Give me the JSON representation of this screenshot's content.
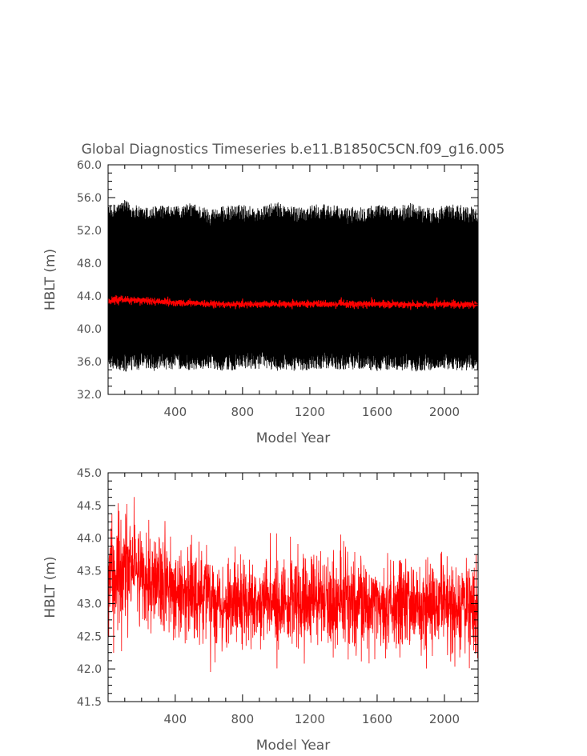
{
  "title": "Global Diagnostics Timeseries b.e11.B1850C5CN.f09_g16.005",
  "chart_data": [
    {
      "type": "line",
      "xlabel": "Model Year",
      "ylabel": "HBLT (m)",
      "xlim": [
        1,
        2200
      ],
      "ylim": [
        32.0,
        60.0
      ],
      "x_ticks": [
        400,
        800,
        1200,
        1600,
        2000
      ],
      "x_tick_labels": [
        "400",
        "800",
        "1200",
        "1600",
        "2000"
      ],
      "y_ticks": [
        32,
        36,
        40,
        44,
        48,
        52,
        56,
        60
      ],
      "y_tick_labels": [
        "32.0",
        "36.0",
        "40.0",
        "44.0",
        "48.0",
        "52.0",
        "56.0",
        "60.0"
      ],
      "series": [
        {
          "kind": "monthly",
          "color": "#000000",
          "x": [
            1,
            100,
            200,
            300,
            400,
            500,
            600,
            700,
            800,
            900,
            1000,
            1100,
            1200,
            1300,
            1400,
            1500,
            1600,
            1700,
            1800,
            1900,
            2000,
            2100,
            2200
          ],
          "min": [
            35.5,
            34.8,
            35.2,
            35.0,
            35.3,
            35.1,
            35.4,
            35.0,
            35.2,
            35.3,
            35.1,
            35.0,
            35.2,
            35.4,
            35.1,
            35.3,
            35.0,
            35.2,
            34.9,
            35.1,
            35.3,
            35.0,
            35.2
          ],
          "max": [
            54.8,
            55.5,
            54.6,
            54.9,
            54.7,
            55.2,
            54.5,
            54.8,
            55.0,
            54.6,
            55.3,
            54.7,
            54.9,
            55.1,
            54.6,
            54.8,
            55.0,
            54.7,
            55.2,
            54.6,
            54.9,
            55.0,
            54.5
          ]
        },
        {
          "kind": "annual mean",
          "color": "#ff0000",
          "x": [
            1,
            100,
            200,
            300,
            400,
            500,
            600,
            700,
            800,
            900,
            1000,
            1100,
            1200,
            1300,
            1400,
            1500,
            1600,
            1700,
            1800,
            1900,
            2000,
            2100,
            2200
          ],
          "values": [
            43.3,
            43.55,
            43.45,
            43.3,
            43.2,
            43.15,
            43.05,
            43.0,
            43.0,
            43.02,
            43.0,
            43.0,
            43.05,
            43.0,
            42.98,
            43.0,
            43.02,
            42.98,
            42.97,
            42.98,
            43.0,
            42.95,
            42.95
          ]
        }
      ]
    },
    {
      "type": "line",
      "xlabel": "Model Year",
      "ylabel": "HBLT (m)",
      "xlim": [
        1,
        2200
      ],
      "ylim": [
        41.5,
        45.0
      ],
      "x_ticks": [
        400,
        800,
        1200,
        1600,
        2000
      ],
      "x_tick_labels": [
        "400",
        "800",
        "1200",
        "1600",
        "2000"
      ],
      "y_ticks": [
        41.5,
        42.0,
        42.5,
        43.0,
        43.5,
        44.0,
        44.5,
        45.0
      ],
      "y_tick_labels": [
        "41.5",
        "42.0",
        "42.5",
        "43.0",
        "43.5",
        "44.0",
        "44.5",
        "45.0"
      ],
      "series": [
        {
          "kind": "annual mean",
          "color": "#ff0000",
          "x": [
            1,
            100,
            200,
            300,
            400,
            500,
            600,
            700,
            800,
            900,
            1000,
            1100,
            1200,
            1300,
            1400,
            1500,
            1600,
            1700,
            1800,
            1900,
            2000,
            2100,
            2200
          ],
          "values": [
            43.3,
            43.55,
            43.45,
            43.3,
            43.2,
            43.15,
            43.05,
            43.0,
            43.0,
            43.02,
            43.0,
            43.0,
            43.05,
            43.0,
            42.98,
            43.0,
            43.02,
            42.98,
            42.97,
            42.98,
            43.0,
            42.95,
            42.95
          ],
          "noise_sd": [
            0.4,
            0.42,
            0.38,
            0.36,
            0.36,
            0.35,
            0.35,
            0.33,
            0.33,
            0.33,
            0.33,
            0.33,
            0.34,
            0.34,
            0.34,
            0.35,
            0.34,
            0.33,
            0.33,
            0.34,
            0.34,
            0.33,
            0.33
          ]
        }
      ]
    }
  ]
}
